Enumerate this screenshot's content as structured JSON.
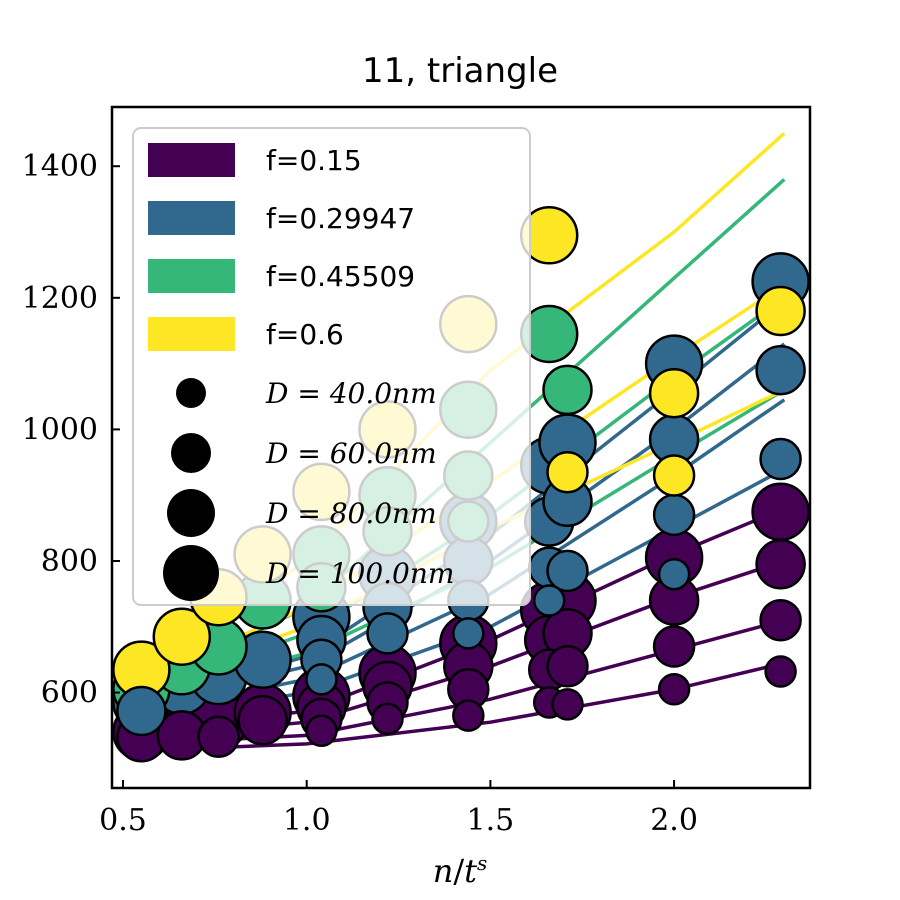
{
  "chart_data": {
    "type": "scatter",
    "title": "11, triangle",
    "xlabel": "n/t^s",
    "ylabel": "",
    "xlim": [
      0.47,
      2.37
    ],
    "ylim": [
      455,
      1490
    ],
    "xticks": [
      0.5,
      1.0,
      1.5,
      2.0
    ],
    "xtick_labels": [
      "0.5",
      "1.0",
      "1.5",
      "2.0"
    ],
    "yticks": [
      600,
      800,
      1000,
      1200,
      1400
    ],
    "ytick_labels": [
      "600",
      "800",
      "1000",
      "1200",
      "1400"
    ],
    "legend": {
      "position": "upper-left",
      "color_entries": [
        {
          "label": "f=0.15",
          "color": "#440154"
        },
        {
          "label": "f=0.29947",
          "color": "#31688e"
        },
        {
          "label": "f=0.45509",
          "color": "#35b779"
        },
        {
          "label": "f=0.6",
          "color": "#fde725"
        }
      ],
      "size_entries": [
        {
          "label": "D = 40.0nm",
          "d": 40
        },
        {
          "label": "D = 60.0nm",
          "d": 60
        },
        {
          "label": "D = 80.0nm",
          "d": 80
        },
        {
          "label": "D = 100.0nm",
          "d": 100
        }
      ]
    },
    "x_positions": [
      0.55,
      0.66,
      0.76,
      0.88,
      1.04,
      1.22,
      1.44,
      1.66,
      1.71,
      2.0,
      2.29
    ],
    "series": [
      {
        "name": "f=0.15",
        "color": "#440154",
        "fit_lines": {
          "40": [
            [
              0.55,
              512
            ],
            [
              1.0,
              522
            ],
            [
              1.5,
              555
            ],
            [
              2.0,
              605
            ],
            [
              2.3,
              645
            ]
          ],
          "60": [
            [
              0.55,
              522
            ],
            [
              1.0,
              535
            ],
            [
              1.5,
              590
            ],
            [
              2.0,
              665
            ],
            [
              2.3,
              710
            ]
          ],
          "80": [
            [
              0.55,
              532
            ],
            [
              1.0,
              555
            ],
            [
              1.5,
              640
            ],
            [
              2.0,
              745
            ],
            [
              2.3,
              800
            ]
          ],
          "100": [
            [
              0.55,
              540
            ],
            [
              1.0,
              572
            ],
            [
              1.5,
              680
            ],
            [
              2.0,
              810
            ],
            [
              2.3,
              880
            ]
          ]
        },
        "points": [
          {
            "x": 0.55,
            "d": 100,
            "y": 540
          },
          {
            "x": 0.55,
            "d": 80,
            "y": 532
          },
          {
            "x": 0.66,
            "d": 100,
            "y": 545
          },
          {
            "x": 0.66,
            "d": 80,
            "y": 535
          },
          {
            "x": 0.76,
            "d": 100,
            "y": 555
          },
          {
            "x": 0.76,
            "d": 60,
            "y": 533
          },
          {
            "x": 0.88,
            "d": 100,
            "y": 570
          },
          {
            "x": 0.88,
            "d": 80,
            "y": 558
          },
          {
            "x": 1.04,
            "d": 100,
            "y": 595
          },
          {
            "x": 1.04,
            "d": 80,
            "y": 578
          },
          {
            "x": 1.04,
            "d": 60,
            "y": 560
          },
          {
            "x": 1.04,
            "d": 40,
            "y": 542
          },
          {
            "x": 1.22,
            "d": 100,
            "y": 630
          },
          {
            "x": 1.22,
            "d": 80,
            "y": 610
          },
          {
            "x": 1.22,
            "d": 60,
            "y": 585
          },
          {
            "x": 1.22,
            "d": 40,
            "y": 560
          },
          {
            "x": 1.44,
            "d": 100,
            "y": 675
          },
          {
            "x": 1.44,
            "d": 80,
            "y": 640
          },
          {
            "x": 1.44,
            "d": 60,
            "y": 605
          },
          {
            "x": 1.44,
            "d": 40,
            "y": 565
          },
          {
            "x": 1.66,
            "d": 100,
            "y": 725
          },
          {
            "x": 1.66,
            "d": 80,
            "y": 680
          },
          {
            "x": 1.66,
            "d": 60,
            "y": 635
          },
          {
            "x": 1.66,
            "d": 40,
            "y": 585
          },
          {
            "x": 1.71,
            "d": 100,
            "y": 740
          },
          {
            "x": 1.71,
            "d": 80,
            "y": 690
          },
          {
            "x": 1.71,
            "d": 60,
            "y": 640
          },
          {
            "x": 1.71,
            "d": 40,
            "y": 582
          },
          {
            "x": 2.0,
            "d": 100,
            "y": 805
          },
          {
            "x": 2.0,
            "d": 80,
            "y": 740
          },
          {
            "x": 2.0,
            "d": 60,
            "y": 670
          },
          {
            "x": 2.0,
            "d": 40,
            "y": 605
          },
          {
            "x": 2.29,
            "d": 100,
            "y": 875
          },
          {
            "x": 2.29,
            "d": 80,
            "y": 795
          },
          {
            "x": 2.29,
            "d": 60,
            "y": 710
          },
          {
            "x": 2.29,
            "d": 40,
            "y": 632
          }
        ]
      },
      {
        "name": "f=0.29947",
        "color": "#31688e",
        "fit_lines": {
          "40": [
            [
              0.55,
              560
            ],
            [
              1.0,
              600
            ],
            [
              1.5,
              700
            ],
            [
              2.0,
              850
            ],
            [
              2.3,
              940
            ]
          ],
          "60": [
            [
              0.55,
              570
            ],
            [
              1.0,
              620
            ],
            [
              1.5,
              750
            ],
            [
              2.0,
              930
            ],
            [
              2.3,
              1045
            ]
          ],
          "80": [
            [
              0.55,
              580
            ],
            [
              1.0,
              640
            ],
            [
              1.5,
              800
            ],
            [
              2.0,
              1000
            ],
            [
              2.3,
              1130
            ]
          ],
          "100": [
            [
              0.55,
              585
            ],
            [
              1.0,
              655
            ],
            [
              1.5,
              840
            ],
            [
              2.0,
              1060
            ],
            [
              2.3,
              1195
            ]
          ]
        },
        "points": [
          {
            "x": 0.55,
            "d": 100,
            "y": 585
          },
          {
            "x": 0.55,
            "d": 80,
            "y": 572
          },
          {
            "x": 0.66,
            "d": 100,
            "y": 610
          },
          {
            "x": 0.76,
            "d": 100,
            "y": 625
          },
          {
            "x": 0.88,
            "d": 100,
            "y": 650
          },
          {
            "x": 1.04,
            "d": 100,
            "y": 715
          },
          {
            "x": 1.04,
            "d": 80,
            "y": 680
          },
          {
            "x": 1.04,
            "d": 60,
            "y": 650
          },
          {
            "x": 1.04,
            "d": 40,
            "y": 620
          },
          {
            "x": 1.22,
            "d": 100,
            "y": 780
          },
          {
            "x": 1.22,
            "d": 80,
            "y": 730
          },
          {
            "x": 1.22,
            "d": 60,
            "y": 690
          },
          {
            "x": 1.44,
            "d": 100,
            "y": 860
          },
          {
            "x": 1.44,
            "d": 80,
            "y": 800
          },
          {
            "x": 1.44,
            "d": 60,
            "y": 740
          },
          {
            "x": 1.44,
            "d": 40,
            "y": 690
          },
          {
            "x": 1.66,
            "d": 100,
            "y": 945
          },
          {
            "x": 1.66,
            "d": 80,
            "y": 860
          },
          {
            "x": 1.66,
            "d": 60,
            "y": 790
          },
          {
            "x": 1.66,
            "d": 40,
            "y": 740
          },
          {
            "x": 1.71,
            "d": 100,
            "y": 980
          },
          {
            "x": 1.71,
            "d": 80,
            "y": 890
          },
          {
            "x": 1.71,
            "d": 60,
            "y": 785
          },
          {
            "x": 2.0,
            "d": 100,
            "y": 1100
          },
          {
            "x": 2.0,
            "d": 80,
            "y": 985
          },
          {
            "x": 2.0,
            "d": 60,
            "y": 870
          },
          {
            "x": 2.0,
            "d": 40,
            "y": 780
          },
          {
            "x": 2.29,
            "d": 100,
            "y": 1225
          },
          {
            "x": 2.29,
            "d": 80,
            "y": 1090
          },
          {
            "x": 2.29,
            "d": 60,
            "y": 955
          }
        ]
      },
      {
        "name": "f=0.45509",
        "color": "#35b779",
        "fit_lines": {
          "40": [
            [
              0.55,
              590
            ],
            [
              1.0,
              660
            ],
            [
              1.5,
              790
            ],
            [
              2.0,
              960
            ],
            [
              2.3,
              1060
            ]
          ],
          "60": [
            [
              0.55,
              600
            ],
            [
              1.0,
              690
            ],
            [
              1.5,
              870
            ],
            [
              2.0,
              1080
            ],
            [
              2.3,
              1200
            ]
          ],
          "100": [
            [
              0.55,
              610
            ],
            [
              1.0,
              730
            ],
            [
              1.5,
              980
            ],
            [
              2.0,
              1230
            ],
            [
              2.3,
              1380
            ]
          ]
        },
        "points": [
          {
            "x": 0.55,
            "d": 100,
            "y": 605
          },
          {
            "x": 0.66,
            "d": 100,
            "y": 640
          },
          {
            "x": 0.76,
            "d": 100,
            "y": 670
          },
          {
            "x": 0.88,
            "d": 100,
            "y": 740
          },
          {
            "x": 1.04,
            "d": 100,
            "y": 810
          },
          {
            "x": 1.04,
            "d": 80,
            "y": 760
          },
          {
            "x": 1.22,
            "d": 100,
            "y": 900
          },
          {
            "x": 1.22,
            "d": 80,
            "y": 845
          },
          {
            "x": 1.44,
            "d": 100,
            "y": 1030
          },
          {
            "x": 1.44,
            "d": 80,
            "y": 930
          },
          {
            "x": 1.44,
            "d": 60,
            "y": 860
          },
          {
            "x": 1.66,
            "d": 100,
            "y": 1145
          },
          {
            "x": 1.71,
            "d": 80,
            "y": 1060
          }
        ]
      },
      {
        "name": "f=0.6",
        "color": "#fde725",
        "fit_lines": {
          "40": [
            [
              0.55,
              610
            ],
            [
              1.0,
              700
            ],
            [
              1.5,
              850
            ],
            [
              2.0,
              980
            ],
            [
              2.3,
              1060
            ]
          ],
          "60": [
            [
              0.55,
              620
            ],
            [
              1.0,
              730
            ],
            [
              1.5,
              920
            ],
            [
              2.0,
              1110
            ],
            [
              2.3,
              1220
            ]
          ],
          "100": [
            [
              0.55,
              635
            ],
            [
              1.0,
              800
            ],
            [
              1.5,
              1090
            ],
            [
              2.0,
              1300
            ],
            [
              2.3,
              1450
            ]
          ]
        },
        "points": [
          {
            "x": 0.55,
            "d": 100,
            "y": 635
          },
          {
            "x": 0.66,
            "d": 100,
            "y": 685
          },
          {
            "x": 0.76,
            "d": 100,
            "y": 745
          },
          {
            "x": 0.88,
            "d": 100,
            "y": 810
          },
          {
            "x": 1.04,
            "d": 100,
            "y": 905
          },
          {
            "x": 1.22,
            "d": 100,
            "y": 1000
          },
          {
            "x": 1.44,
            "d": 100,
            "y": 1160
          },
          {
            "x": 1.66,
            "d": 100,
            "y": 1295
          },
          {
            "x": 1.71,
            "d": 60,
            "y": 935
          },
          {
            "x": 2.0,
            "d": 80,
            "y": 1055
          },
          {
            "x": 2.0,
            "d": 60,
            "y": 930
          },
          {
            "x": 2.29,
            "d": 80,
            "y": 1180
          }
        ]
      }
    ]
  }
}
